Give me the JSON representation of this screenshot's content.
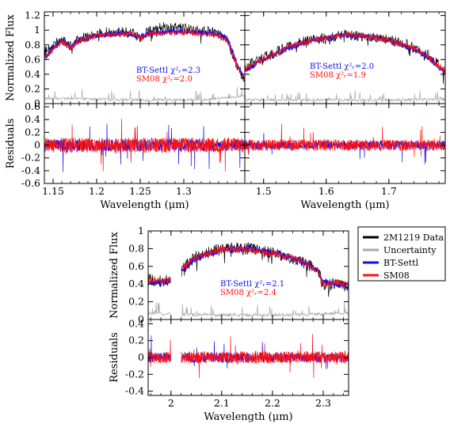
{
  "chart_data": {
    "type": "line",
    "colors": {
      "data": "#000000",
      "uncertainty": "#aaaaaa",
      "bt_settl": "#1010ee",
      "sm08": "#ff1010"
    },
    "legend": {
      "placement": "right of bottom panel",
      "entries": [
        "2M1219 Data",
        "Uncertainty",
        "BT-Settl",
        "SM08"
      ]
    },
    "panels": [
      {
        "id": "J",
        "xlabel": "Wavelength (μm)",
        "xlim": [
          1.14,
          1.37
        ],
        "xticks": [
          1.15,
          1.2,
          1.25,
          1.3
        ],
        "flux": {
          "ylabel": "Normalized Flux",
          "ylim": [
            0,
            1.25
          ],
          "yticks": [
            0,
            0.2,
            0.4,
            0.6,
            0.8,
            1,
            1.2
          ],
          "series": [
            {
              "name": "2M1219 Data",
              "x": [
                1.14,
                1.15,
                1.16,
                1.17,
                1.18,
                1.2,
                1.22,
                1.24,
                1.25,
                1.26,
                1.28,
                1.3,
                1.32,
                1.34,
                1.35,
                1.36,
                1.37
              ],
              "y": [
                0.7,
                0.8,
                0.88,
                0.78,
                0.88,
                0.96,
                0.98,
                0.97,
                0.9,
                1.0,
                1.05,
                1.03,
                1.0,
                0.95,
                0.85,
                0.55,
                0.3
              ]
            },
            {
              "name": "Uncertainty",
              "x": [
                1.14,
                1.2,
                1.26,
                1.32,
                1.36,
                1.37
              ],
              "y": [
                0.07,
                0.06,
                0.05,
                0.05,
                0.09,
                0.12
              ]
            },
            {
              "name": "BT-Settl",
              "x": [
                1.14,
                1.15,
                1.16,
                1.17,
                1.18,
                1.2,
                1.22,
                1.24,
                1.25,
                1.26,
                1.28,
                1.3,
                1.32,
                1.34,
                1.35,
                1.36,
                1.37
              ],
              "y": [
                0.62,
                0.76,
                0.86,
                0.78,
                0.86,
                0.93,
                0.95,
                0.95,
                0.9,
                0.96,
                0.98,
                0.98,
                0.97,
                0.95,
                0.88,
                0.58,
                0.32
              ]
            },
            {
              "name": "SM08",
              "x": [
                1.14,
                1.15,
                1.16,
                1.17,
                1.18,
                1.2,
                1.22,
                1.24,
                1.25,
                1.26,
                1.28,
                1.3,
                1.32,
                1.34,
                1.35,
                1.36,
                1.37
              ],
              "y": [
                0.6,
                0.74,
                0.85,
                0.76,
                0.85,
                0.93,
                0.95,
                0.96,
                0.89,
                0.95,
                0.97,
                0.97,
                0.96,
                0.93,
                0.86,
                0.55,
                0.3
              ]
            }
          ],
          "annotations": [
            {
              "series": "BT-Settl",
              "label": "BT-Settl",
              "chi2": "χ²ᵣ=2.3",
              "color": "#1010ee"
            },
            {
              "series": "SM08",
              "label": "SM08",
              "chi2": "χ²ᵣ=2.0",
              "color": "#ff1010"
            }
          ]
        },
        "residuals": {
          "ylabel": "Residuals",
          "ylim": [
            -0.6,
            0.65
          ],
          "yticks": [
            -0.6,
            -0.4,
            -0.2,
            0,
            0.2,
            0.4,
            0.6
          ],
          "noise_amplitude": 0.2
        }
      },
      {
        "id": "H",
        "xlabel": "Wavelength (μm)",
        "xlim": [
          1.47,
          1.79
        ],
        "xticks": [
          1.5,
          1.6,
          1.7
        ],
        "flux": {
          "ylabel": "",
          "ylim": [
            0,
            1.25
          ],
          "yticks": [],
          "series": [
            {
              "name": "2M1219 Data",
              "x": [
                1.47,
                1.5,
                1.53,
                1.56,
                1.6,
                1.63,
                1.66,
                1.7,
                1.73,
                1.76,
                1.79
              ],
              "y": [
                0.5,
                0.63,
                0.74,
                0.84,
                0.9,
                0.94,
                0.92,
                0.87,
                0.8,
                0.68,
                0.45
              ]
            },
            {
              "name": "Uncertainty",
              "x": [
                1.47,
                1.6,
                1.7,
                1.79
              ],
              "y": [
                0.05,
                0.05,
                0.05,
                0.06
              ]
            },
            {
              "name": "BT-Settl",
              "x": [
                1.47,
                1.5,
                1.53,
                1.56,
                1.6,
                1.63,
                1.66,
                1.7,
                1.73,
                1.76,
                1.79
              ],
              "y": [
                0.45,
                0.6,
                0.72,
                0.82,
                0.9,
                0.93,
                0.92,
                0.86,
                0.78,
                0.65,
                0.42
              ]
            },
            {
              "name": "SM08",
              "x": [
                1.47,
                1.5,
                1.53,
                1.56,
                1.6,
                1.63,
                1.66,
                1.7,
                1.73,
                1.76,
                1.79
              ],
              "y": [
                0.46,
                0.61,
                0.73,
                0.83,
                0.9,
                0.94,
                0.92,
                0.86,
                0.79,
                0.66,
                0.43
              ]
            }
          ],
          "annotations": [
            {
              "series": "BT-Settl",
              "label": "BT-Settl",
              "chi2": "χ²ᵣ=2.0",
              "color": "#1010ee"
            },
            {
              "series": "SM08",
              "label": "SM08",
              "chi2": "χ²ᵣ=1.9",
              "color": "#ff1010"
            }
          ]
        },
        "residuals": {
          "ylabel": "",
          "ylim": [
            -0.6,
            0.65
          ],
          "yticks": [],
          "noise_amplitude": 0.15
        }
      },
      {
        "id": "K",
        "xlabel": "Wavelength (μm)",
        "xlim": [
          1.955,
          2.35
        ],
        "xticks": [
          2,
          2.1,
          2.2,
          2.3
        ],
        "gap": [
          2.0,
          2.02
        ],
        "flux": {
          "ylabel": "Normalized Flux",
          "ylim": [
            0,
            1.0
          ],
          "yticks": [
            0,
            0.2,
            0.4,
            0.6,
            0.8,
            1
          ],
          "series": [
            {
              "name": "2M1219 Data",
              "x": [
                1.955,
                1.98,
                2.0,
                2.02,
                2.05,
                2.1,
                2.15,
                2.2,
                2.25,
                2.29,
                2.3,
                2.33,
                2.35
              ],
              "y": [
                0.45,
                0.43,
                0.45,
                0.55,
                0.72,
                0.8,
                0.8,
                0.75,
                0.68,
                0.55,
                0.38,
                0.4,
                0.38
              ]
            },
            {
              "name": "Uncertainty",
              "x": [
                1.955,
                2.0,
                2.1,
                2.2,
                2.3,
                2.35
              ],
              "y": [
                0.07,
                0.06,
                0.05,
                0.05,
                0.06,
                0.07
              ]
            },
            {
              "name": "BT-Settl",
              "x": [
                1.955,
                1.98,
                2.0,
                2.02,
                2.05,
                2.1,
                2.15,
                2.2,
                2.25,
                2.29,
                2.3,
                2.33,
                2.35
              ],
              "y": [
                0.42,
                0.42,
                0.44,
                0.55,
                0.7,
                0.78,
                0.8,
                0.76,
                0.68,
                0.56,
                0.42,
                0.4,
                0.38
              ]
            },
            {
              "name": "SM08",
              "x": [
                1.955,
                1.98,
                2.0,
                2.02,
                2.05,
                2.1,
                2.15,
                2.2,
                2.25,
                2.29,
                2.3,
                2.33,
                2.35
              ],
              "y": [
                0.44,
                0.43,
                0.45,
                0.56,
                0.71,
                0.79,
                0.79,
                0.75,
                0.67,
                0.55,
                0.4,
                0.41,
                0.39
              ]
            }
          ],
          "annotations": [
            {
              "series": "BT-Settl",
              "label": "BT-Settl",
              "chi2": "χ²ᵣ=2.1",
              "color": "#1010ee"
            },
            {
              "series": "SM08",
              "label": "SM08",
              "chi2": "χ²ᵣ=2.4",
              "color": "#ff1010"
            }
          ]
        },
        "residuals": {
          "ylabel": "Residuals",
          "ylim": [
            -0.45,
            0.45
          ],
          "yticks": [
            -0.4,
            -0.2,
            0,
            0.2,
            0.4
          ],
          "noise_amplitude": 0.12
        }
      }
    ]
  }
}
